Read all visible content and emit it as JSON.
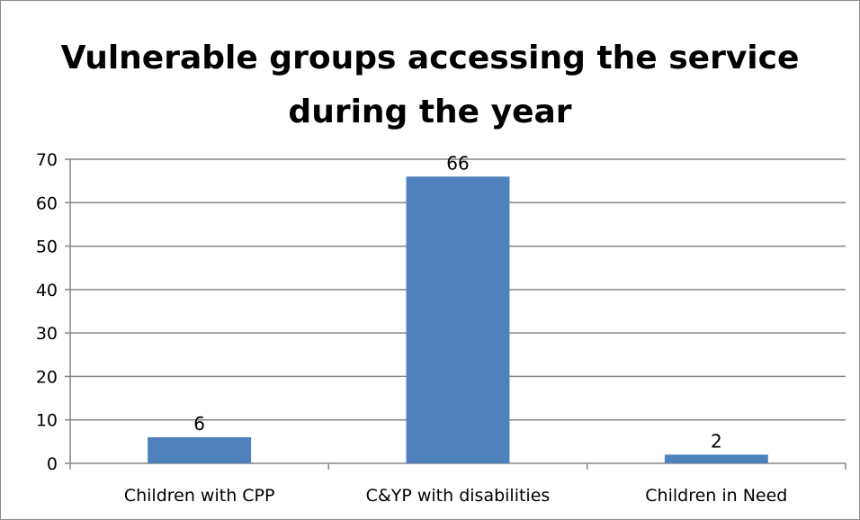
{
  "chart_data": {
    "type": "bar",
    "title": "Vulnerable groups accessing the service during the year",
    "categories": [
      "Children with CPP",
      "C&YP with disabilities",
      "Children in Need"
    ],
    "values": [
      6,
      66,
      2
    ],
    "ylim": [
      0,
      70
    ],
    "yticks": [
      0,
      10,
      20,
      30,
      40,
      50,
      60,
      70
    ],
    "grid": true,
    "legend": "none",
    "bar_color": "#4f81bd",
    "grid_color": "#868686"
  }
}
